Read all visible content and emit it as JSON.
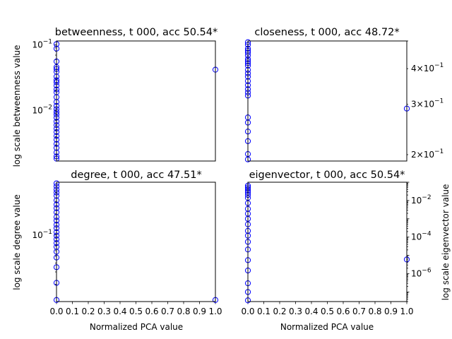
{
  "chart_data": [
    {
      "type": "scatter",
      "title": "betweenness, t 000, acc 50.54*",
      "xlabel": "",
      "ylabel": "log scale betweenness value",
      "yaxis_side": "left",
      "yscale": "log",
      "xlim": [
        0,
        1
      ],
      "ylim": [
        0.0017,
        0.115
      ],
      "ytick_labels": [
        {
          "value": 0.01,
          "base": "10",
          "exp": "−2"
        },
        {
          "value": 0.1,
          "base": "10",
          "exp": "−1"
        }
      ],
      "xtick_labels": [],
      "grid": false,
      "points": [
        [
          0,
          0.103
        ],
        [
          0,
          0.088
        ],
        [
          0,
          0.056
        ],
        [
          0,
          0.046
        ],
        [
          0,
          0.043
        ],
        [
          0,
          0.039
        ],
        [
          0,
          0.033
        ],
        [
          0,
          0.029
        ],
        [
          0,
          0.027
        ],
        [
          0,
          0.024
        ],
        [
          0,
          0.021
        ],
        [
          0,
          0.019
        ],
        [
          0,
          0.016
        ],
        [
          0,
          0.0135
        ],
        [
          0,
          0.0118
        ],
        [
          0,
          0.0105
        ],
        [
          0,
          0.0095
        ],
        [
          0,
          0.0087
        ],
        [
          0,
          0.0078
        ],
        [
          0,
          0.0068
        ],
        [
          0,
          0.006
        ],
        [
          0,
          0.0053
        ],
        [
          0,
          0.0047
        ],
        [
          0,
          0.0041
        ],
        [
          0,
          0.0036
        ],
        [
          0,
          0.0031
        ],
        [
          0,
          0.0027
        ],
        [
          0,
          0.0023
        ],
        [
          0,
          0.002
        ],
        [
          0,
          0.00185
        ],
        [
          1,
          0.042
        ]
      ]
    },
    {
      "type": "scatter",
      "title": "closeness, t 000, acc 48.72*",
      "xlabel": "",
      "ylabel": "",
      "yaxis_side": "right",
      "yscale": "log",
      "xlim": [
        0,
        1
      ],
      "ylim": [
        0.19,
        0.5
      ],
      "ytick_labels": [
        {
          "value": 0.2,
          "base": "2×10",
          "exp": "−1"
        },
        {
          "value": 0.3,
          "base": "3×10",
          "exp": "−1"
        },
        {
          "value": 0.4,
          "base": "4×10",
          "exp": "−1"
        }
      ],
      "xtick_labels": [],
      "grid": false,
      "points": [
        [
          0,
          0.495
        ],
        [
          0,
          0.485
        ],
        [
          0,
          0.47
        ],
        [
          0,
          0.462
        ],
        [
          0,
          0.455
        ],
        [
          0,
          0.445
        ],
        [
          0,
          0.432
        ],
        [
          0,
          0.425
        ],
        [
          0,
          0.418
        ],
        [
          0,
          0.41
        ],
        [
          0,
          0.396
        ],
        [
          0,
          0.385
        ],
        [
          0,
          0.375
        ],
        [
          0,
          0.362
        ],
        [
          0,
          0.35
        ],
        [
          0,
          0.339
        ],
        [
          0,
          0.33
        ],
        [
          0,
          0.322
        ],
        [
          0,
          0.27
        ],
        [
          0,
          0.259
        ],
        [
          0,
          0.241
        ],
        [
          0,
          0.223
        ],
        [
          0,
          0.201
        ],
        [
          0,
          0.1925
        ],
        [
          1,
          0.29
        ]
      ]
    },
    {
      "type": "scatter",
      "title": "degree, t 000, acc 47.51*",
      "xlabel": "Normalized PCA value",
      "ylabel": "log scale degree value",
      "yaxis_side": "left",
      "yscale": "log",
      "xlim": [
        0,
        1
      ],
      "ylim": [
        0.0114,
        0.56
      ],
      "ytick_labels": [
        {
          "value": 0.1,
          "base": "10",
          "exp": "−1"
        }
      ],
      "xtick_labels": [
        "0.0",
        "0.1",
        "0.2",
        "0.3",
        "0.4",
        "0.5",
        "0.6",
        "0.7",
        "0.8",
        "0.9",
        "1.0"
      ],
      "grid": false,
      "points": [
        [
          0,
          0.54
        ],
        [
          0,
          0.49
        ],
        [
          0,
          0.44
        ],
        [
          0,
          0.4
        ],
        [
          0,
          0.36
        ],
        [
          0,
          0.31
        ],
        [
          0,
          0.27
        ],
        [
          0,
          0.24
        ],
        [
          0,
          0.21
        ],
        [
          0,
          0.18
        ],
        [
          0,
          0.16
        ],
        [
          0,
          0.14
        ],
        [
          0,
          0.125
        ],
        [
          0,
          0.11
        ],
        [
          0,
          0.098
        ],
        [
          0,
          0.087
        ],
        [
          0,
          0.077
        ],
        [
          0,
          0.068
        ],
        [
          0,
          0.058
        ],
        [
          0,
          0.048
        ],
        [
          0,
          0.035
        ],
        [
          0,
          0.021
        ],
        [
          0,
          0.012
        ],
        [
          1,
          0.012
        ]
      ]
    },
    {
      "type": "scatter",
      "title": "eigenvector, t 000, acc 50.54*",
      "xlabel": "Normalized PCA value",
      "ylabel": "log scale eigenvector value",
      "yaxis_side": "right",
      "yscale": "log",
      "xlim": [
        0,
        1
      ],
      "ylim": [
        3e-08,
        0.1
      ],
      "ytick_labels": [
        {
          "value": 1e-06,
          "base": "10",
          "exp": "−6"
        },
        {
          "value": 0.0001,
          "base": "10",
          "exp": "−4"
        },
        {
          "value": 0.01,
          "base": "10",
          "exp": "−2"
        }
      ],
      "xtick_labels": [
        "0.0",
        "0.1",
        "0.2",
        "0.3",
        "0.4",
        "0.5",
        "0.6",
        "0.7",
        "0.8",
        "0.9",
        "1.0"
      ],
      "grid": false,
      "points": [
        [
          0,
          0.065
        ],
        [
          0,
          0.052
        ],
        [
          0,
          0.042
        ],
        [
          0,
          0.034
        ],
        [
          0,
          0.027
        ],
        [
          0,
          0.02
        ],
        [
          0,
          0.014
        ],
        [
          0,
          0.0072
        ],
        [
          0,
          0.0035
        ],
        [
          0,
          0.0019
        ],
        [
          0,
          0.001
        ],
        [
          0,
          0.0005
        ],
        [
          0,
          0.00022
        ],
        [
          0,
          0.00012
        ],
        [
          0,
          5.5e-05
        ],
        [
          0,
          2.1e-05
        ],
        [
          0,
          5.5e-06
        ],
        [
          0,
          1.5e-06
        ],
        [
          0,
          3e-07
        ],
        [
          0,
          1e-07
        ],
        [
          0,
          3.5e-08
        ],
        [
          1,
          6e-06
        ]
      ]
    }
  ]
}
